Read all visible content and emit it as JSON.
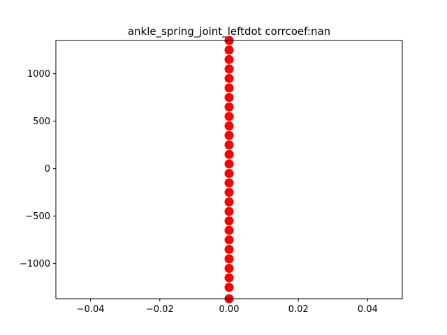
{
  "chart_data": {
    "type": "scatter",
    "title": "ankle_spring_joint_leftdot corrcoef:nan",
    "xlabel": "",
    "ylabel": "",
    "xlim": [
      -0.05,
      0.05
    ],
    "ylim": [
      -1370,
      1350
    ],
    "grid": false,
    "x_ticks": [
      -0.04,
      -0.02,
      0.0,
      0.02,
      0.04
    ],
    "x_tick_labels": [
      "−0.04",
      "−0.02",
      "0.00",
      "0.02",
      "0.04"
    ],
    "y_ticks": [
      -1000,
      -500,
      0,
      500,
      1000
    ],
    "y_tick_labels": [
      "−1000",
      "−500",
      "0",
      "500",
      "1000"
    ],
    "colors": {
      "points": "#ff0000",
      "axes": "#000000",
      "background": "#ffffff"
    },
    "series": [
      {
        "x": [
          0,
          0,
          0,
          0,
          0,
          0,
          0,
          0,
          0,
          0,
          0,
          0,
          0,
          0,
          0,
          0,
          0,
          0,
          0,
          0,
          0,
          0,
          0,
          0,
          0,
          0,
          0,
          0
        ],
        "y": [
          -1370,
          -1250,
          -1150,
          -1050,
          -950,
          -850,
          -750,
          -650,
          -550,
          -450,
          -350,
          -250,
          -150,
          -50,
          50,
          150,
          250,
          350,
          450,
          550,
          650,
          750,
          850,
          950,
          1050,
          1150,
          1250,
          1350
        ]
      }
    ]
  }
}
